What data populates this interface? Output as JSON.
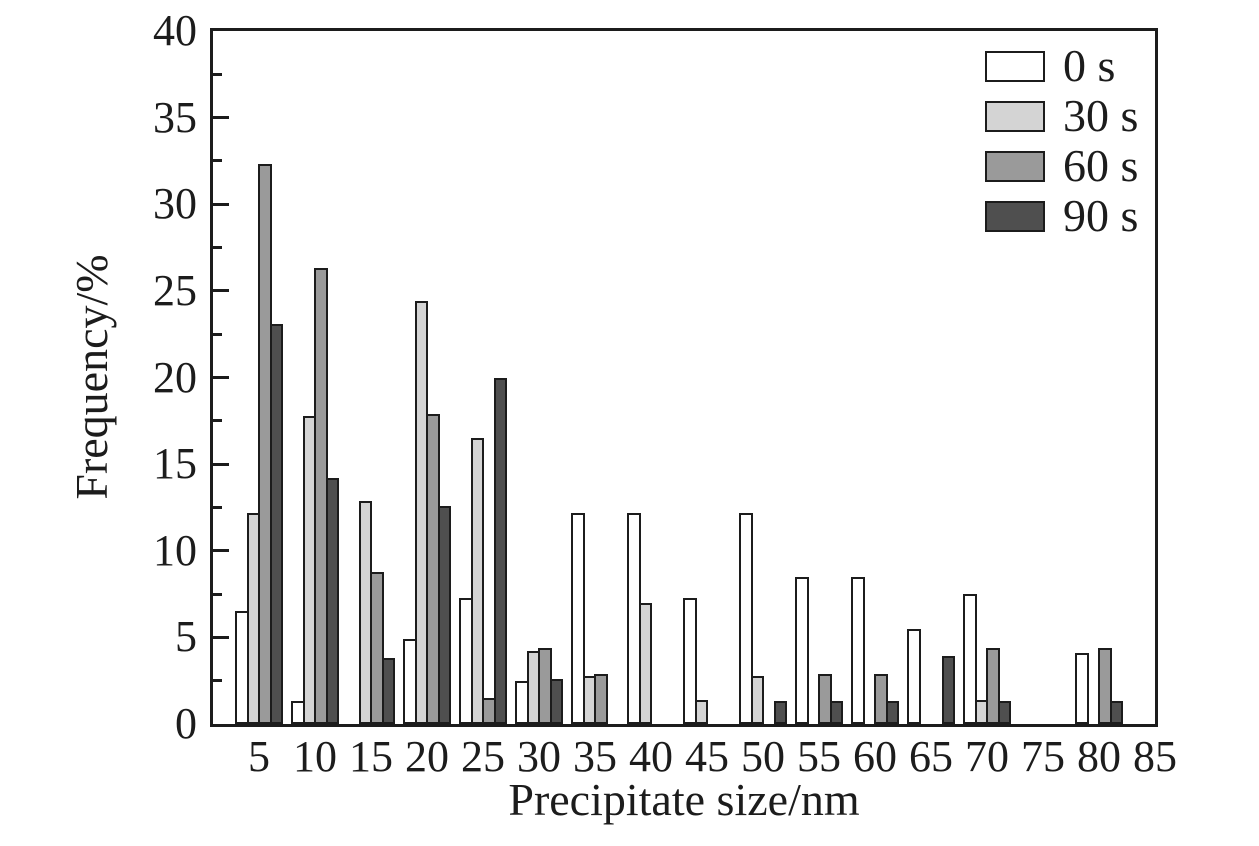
{
  "chart_data": {
    "type": "bar",
    "title": "",
    "xlabel": "Precipitate size/nm",
    "ylabel": "Frequency/%",
    "categories": [
      5,
      10,
      15,
      20,
      25,
      30,
      35,
      40,
      45,
      50,
      55,
      60,
      65,
      70,
      75,
      80
    ],
    "x_axis_ticks": [
      5,
      10,
      15,
      20,
      25,
      30,
      35,
      40,
      45,
      50,
      55,
      60,
      65,
      70,
      75,
      80,
      85
    ],
    "ylim": [
      0,
      40
    ],
    "y_major_step": 5,
    "y_minor_step": 2.5,
    "grid": false,
    "legend_position": "top-right-inside",
    "axis_color": "#1c1c1c",
    "bar_outline_color": "#1c1c1c",
    "series": [
      {
        "name": "0 s",
        "color": "#ffffff",
        "values": [
          6.5,
          1.3,
          0,
          4.9,
          7.3,
          2.5,
          12.2,
          12.2,
          7.3,
          12.2,
          8.5,
          8.5,
          5.5,
          7.5,
          0,
          4.1
        ]
      },
      {
        "name": "30 s",
        "color": "#d4d4d4",
        "values": [
          12.2,
          17.8,
          12.9,
          24.4,
          16.5,
          4.2,
          2.8,
          7.0,
          1.4,
          2.8,
          0,
          0,
          0,
          1.4,
          0,
          0
        ]
      },
      {
        "name": "60 s",
        "color": "#9a9a9a",
        "values": [
          32.3,
          26.3,
          8.8,
          17.9,
          1.5,
          4.4,
          2.9,
          0,
          0,
          0,
          2.9,
          2.9,
          0,
          4.4,
          0,
          4.4
        ]
      },
      {
        "name": "90 s",
        "color": "#4f4f4f",
        "values": [
          23.1,
          14.2,
          3.8,
          12.6,
          20.0,
          2.6,
          0,
          0,
          0,
          1.3,
          1.3,
          1.3,
          3.9,
          1.3,
          0,
          1.3
        ]
      }
    ]
  }
}
